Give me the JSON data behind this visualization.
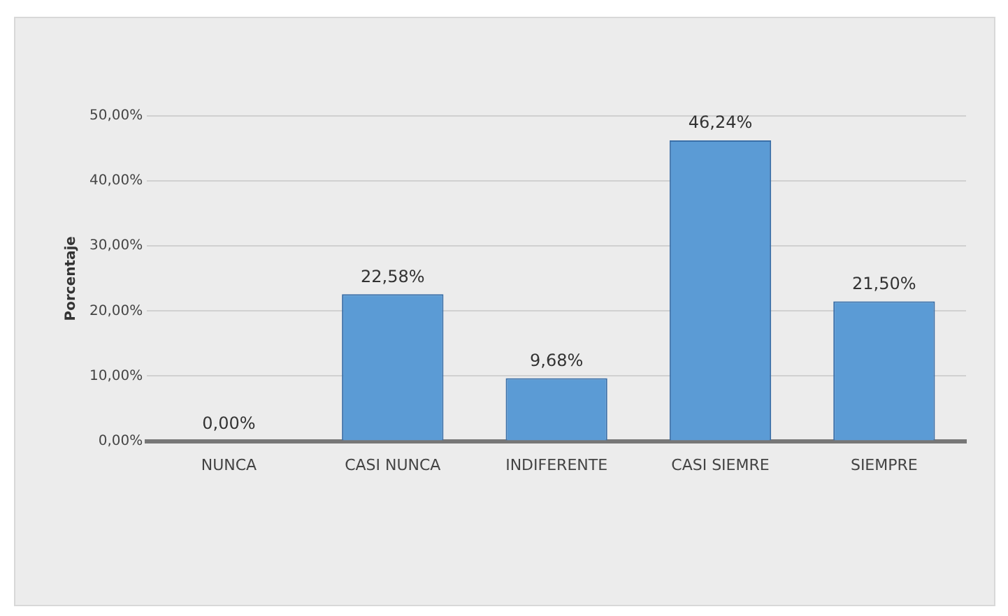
{
  "chart_data": {
    "type": "bar",
    "ylabel": "Porcentaje",
    "categories": [
      "NUNCA",
      "CASI NUNCA",
      "INDIFERENTE",
      "CASI SIEMRE",
      "SIEMPRE"
    ],
    "values": [
      0,
      22.58,
      9.68,
      46.24,
      21.5
    ],
    "value_labels": [
      "0,00%",
      "22,58%",
      "9,68%",
      "46,24%",
      "21,50%"
    ],
    "color": "#5b9bd5",
    "ylim": [
      0,
      50
    ],
    "yticks": [
      {
        "value": 0,
        "label": "0,00%"
      },
      {
        "value": 10,
        "label": "10,00%"
      },
      {
        "value": 20,
        "label": "20,00%"
      },
      {
        "value": 30,
        "label": "30,00%"
      },
      {
        "value": 40,
        "label": "40,00%"
      },
      {
        "value": 50,
        "label": "50,00%"
      }
    ],
    "grid": "y",
    "legend": false
  }
}
